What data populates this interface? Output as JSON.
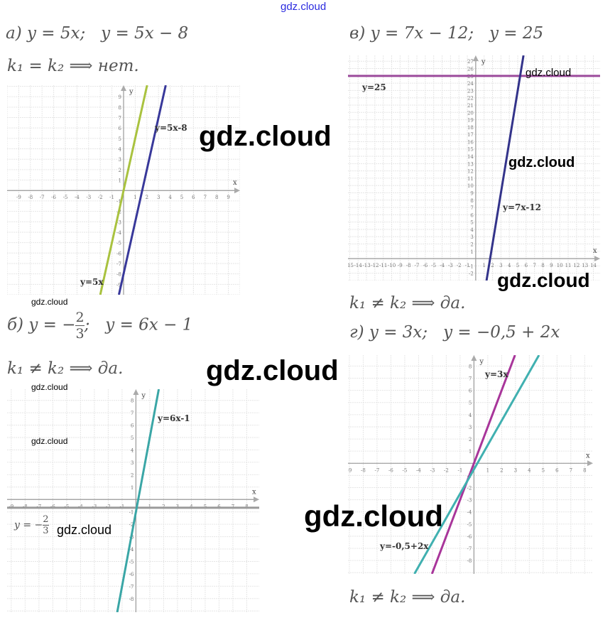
{
  "header_link": "gdz.cloud",
  "problems": {
    "a": {
      "equation": "а) y = 5x;   y = 5x − 8",
      "answer": "k₁ = k₂ ⟹ нет."
    },
    "v": {
      "equation": "в) y = 7x − 12;   y = 25",
      "answer": "k₁ ≠ k₂ ⟹ да."
    },
    "b": {
      "prefix": "б) y = −",
      "num": "2",
      "den": "3",
      "suffix": ";   y = 6x − 1",
      "answer": "k₁ ≠ k₂ ⟹ да."
    },
    "g": {
      "equation": "г) y = 3x;   y = −0,5 + 2x",
      "answer": "k₁ ≠ k₂ ⟹ да."
    }
  },
  "watermark": "gdz.cloud",
  "chart_data": [
    {
      "id": "a",
      "type": "line",
      "xlabel": "x",
      "ylabel": "y",
      "xlim": [
        -10,
        10
      ],
      "ylim": [
        -10,
        10.1
      ],
      "xticks": [
        -9,
        9
      ],
      "yticks": [
        -9,
        9
      ],
      "grid": true,
      "series": [
        {
          "name": "y=5x",
          "slope": 5,
          "intercept": 0,
          "color": "#a9c23f"
        },
        {
          "name": "y=5x-8",
          "slope": 5,
          "intercept": -8,
          "color": "#38389a"
        }
      ]
    },
    {
      "id": "v",
      "type": "line",
      "xlabel": "x",
      "ylabel": "y",
      "xlim": [
        -15.2,
        14.8
      ],
      "ylim": [
        -3,
        27.8
      ],
      "xticks": [
        -15,
        14
      ],
      "yticks": [
        -2,
        27
      ],
      "grid": true,
      "series": [
        {
          "name": "y=25",
          "slope": 0,
          "intercept": 25,
          "color": "#9b4a9b"
        },
        {
          "name": "y=7x-12",
          "slope": 7,
          "intercept": -12,
          "color": "#33338a"
        }
      ]
    },
    {
      "id": "b",
      "type": "line",
      "xlabel": "x",
      "ylabel": "y",
      "xlim": [
        -9.3,
        8.9
      ],
      "ylim": [
        -9.1,
        8.9
      ],
      "xticks": [
        -9,
        8
      ],
      "yticks": [
        -8,
        8
      ],
      "grid": true,
      "series": [
        {
          "name": "y = −2/3",
          "slope": 0,
          "intercept": -0.6667,
          "color": "#9a9a9a"
        },
        {
          "name": "y=6x-1",
          "slope": 6,
          "intercept": -1,
          "color": "#3aa6a6"
        }
      ]
    },
    {
      "id": "g",
      "type": "line",
      "xlabel": "x",
      "ylabel": "y",
      "xlim": [
        -9.1,
        8.6
      ],
      "ylim": [
        -9.1,
        8.9
      ],
      "xticks": [
        -9,
        8
      ],
      "yticks": [
        -8,
        8
      ],
      "grid": true,
      "series": [
        {
          "name": "y=3x",
          "slope": 3,
          "intercept": 0,
          "color": "#a8359a"
        },
        {
          "name": "y=-0,5+2x",
          "slope": 2,
          "intercept": -0.5,
          "color": "#40b0b0"
        }
      ]
    }
  ]
}
